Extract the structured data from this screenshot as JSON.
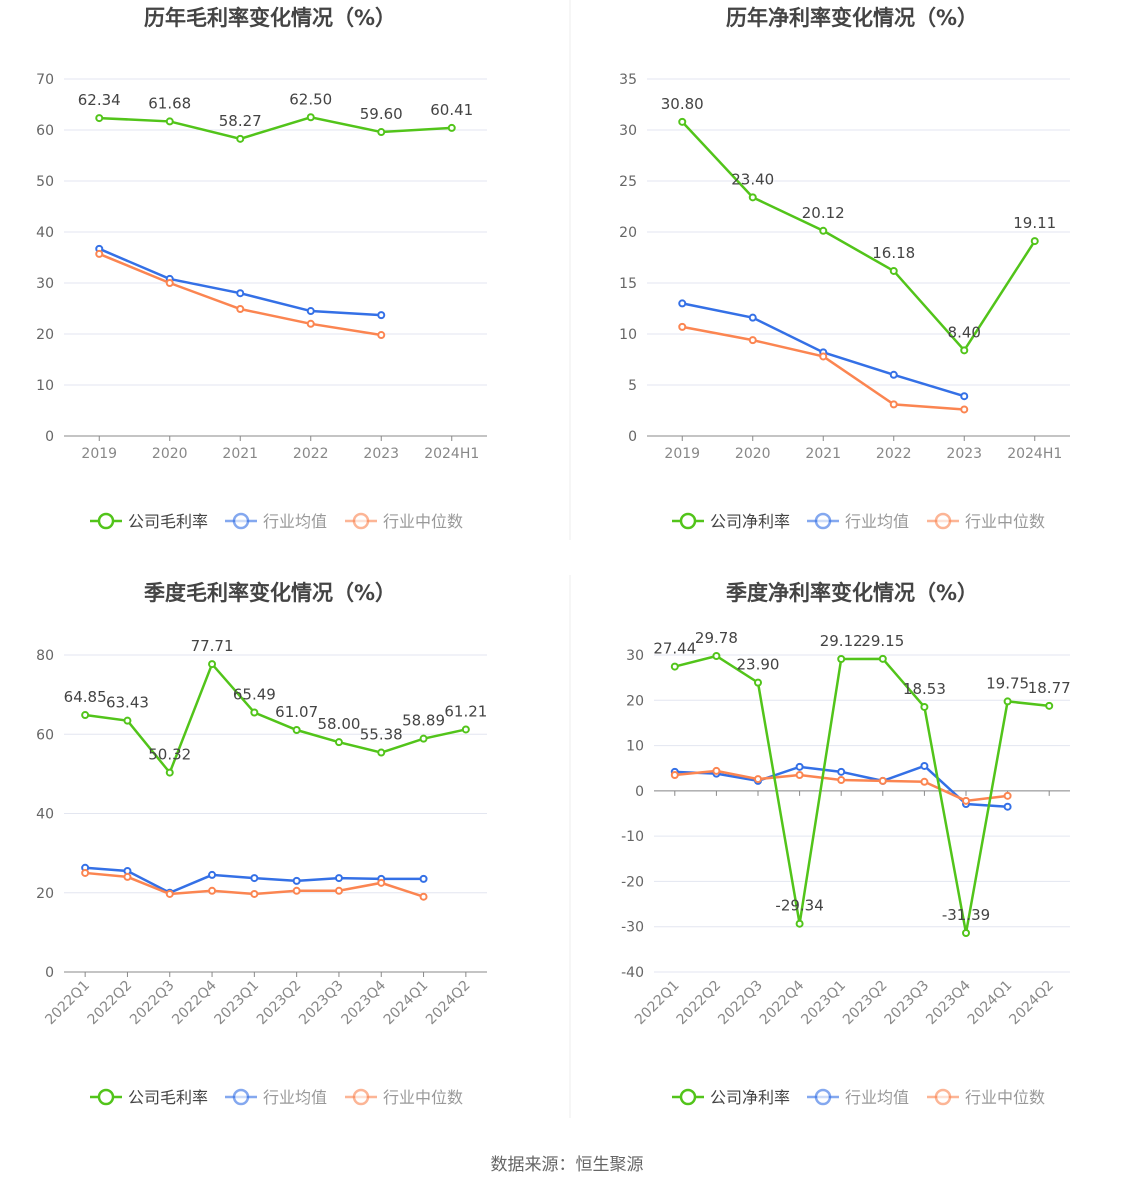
{
  "source": "数据来源：恒生聚源",
  "colors": {
    "company": "#52c41a",
    "avg": "#3470e6",
    "median": "#fb8551",
    "grid": "#e3e6f0",
    "axis": "#888888"
  },
  "chart_data": [
    {
      "type": "line",
      "title": "历年毛利率变化情况（%）",
      "categories": [
        "2019",
        "2020",
        "2021",
        "2022",
        "2023",
        "2024H1"
      ],
      "ylim": [
        0,
        70
      ],
      "yticks": [
        0,
        10,
        20,
        30,
        40,
        50,
        60,
        70
      ],
      "series": [
        {
          "name": "公司毛利率",
          "values": [
            62.34,
            61.68,
            58.27,
            62.5,
            59.6,
            60.41
          ],
          "labels": [
            "62.34",
            "61.68",
            "58.27",
            "62.50",
            "59.60",
            "60.41"
          ]
        },
        {
          "name": "行业均值",
          "values": [
            36.7,
            30.8,
            28.0,
            24.5,
            23.7,
            null
          ]
        },
        {
          "name": "行业中位数",
          "values": [
            35.7,
            30.0,
            24.9,
            22.0,
            19.8,
            null
          ]
        }
      ]
    },
    {
      "type": "line",
      "title": "历年净利率变化情况（%）",
      "categories": [
        "2019",
        "2020",
        "2021",
        "2022",
        "2023",
        "2024H1"
      ],
      "ylim": [
        0,
        35
      ],
      "yticks": [
        0,
        5,
        10,
        15,
        20,
        25,
        30,
        35
      ],
      "series": [
        {
          "name": "公司净利率",
          "values": [
            30.8,
            23.4,
            20.12,
            16.18,
            8.4,
            19.11
          ],
          "labels": [
            "30.80",
            "23.40",
            "20.12",
            "16.18",
            "8.40",
            "19.11"
          ]
        },
        {
          "name": "行业均值",
          "values": [
            13.0,
            11.6,
            8.2,
            6.0,
            3.9,
            null
          ]
        },
        {
          "name": "行业中位数",
          "values": [
            10.7,
            9.4,
            7.8,
            3.1,
            2.6,
            null
          ]
        }
      ]
    },
    {
      "type": "line",
      "title": "季度毛利率变化情况（%）",
      "categories": [
        "2022Q1",
        "2022Q2",
        "2022Q3",
        "2022Q4",
        "2023Q1",
        "2023Q2",
        "2023Q3",
        "2023Q4",
        "2024Q1",
        "2024Q2"
      ],
      "ylim": [
        0,
        80
      ],
      "yticks": [
        0,
        20,
        40,
        60,
        80
      ],
      "series": [
        {
          "name": "公司毛利率",
          "values": [
            64.85,
            63.43,
            50.32,
            77.71,
            65.49,
            61.07,
            58.0,
            55.38,
            58.89,
            61.21
          ],
          "labels": [
            "64.85",
            "63.43",
            "50.32",
            "77.71",
            "65.49",
            "61.07",
            "58.00",
            "55.38",
            "58.89",
            "61.21"
          ]
        },
        {
          "name": "行业均值",
          "values": [
            26.3,
            25.5,
            20.0,
            24.5,
            23.7,
            23.0,
            23.7,
            23.5,
            23.5,
            null
          ]
        },
        {
          "name": "行业中位数",
          "values": [
            25.0,
            24.0,
            19.7,
            20.5,
            19.7,
            20.5,
            20.5,
            22.5,
            19.0,
            null
          ]
        }
      ]
    },
    {
      "type": "line",
      "title": "季度净利率变化情况（%）",
      "categories": [
        "2022Q1",
        "2022Q2",
        "2022Q3",
        "2022Q4",
        "2023Q1",
        "2023Q2",
        "2023Q3",
        "2023Q4",
        "2024Q1",
        "2024Q2"
      ],
      "ylim": [
        -40,
        30
      ],
      "yticks": [
        -40,
        -30,
        -20,
        -10,
        0,
        10,
        20,
        30
      ],
      "series": [
        {
          "name": "公司净利率",
          "values": [
            27.44,
            29.78,
            23.9,
            -29.34,
            29.12,
            29.15,
            18.53,
            -31.39,
            19.75,
            18.77
          ],
          "labels": [
            "27.44",
            "29.78",
            "23.90",
            "-29.34",
            "29.12",
            "29.15",
            "18.53",
            "-31.39",
            "19.75",
            "18.77"
          ]
        },
        {
          "name": "行业均值",
          "values": [
            4.2,
            3.8,
            2.2,
            5.3,
            4.2,
            2.2,
            5.5,
            -2.9,
            -3.5,
            null
          ]
        },
        {
          "name": "行业中位数",
          "values": [
            3.5,
            4.4,
            2.6,
            3.5,
            2.4,
            2.2,
            2.0,
            -2.2,
            -1.1,
            null
          ]
        }
      ]
    }
  ]
}
